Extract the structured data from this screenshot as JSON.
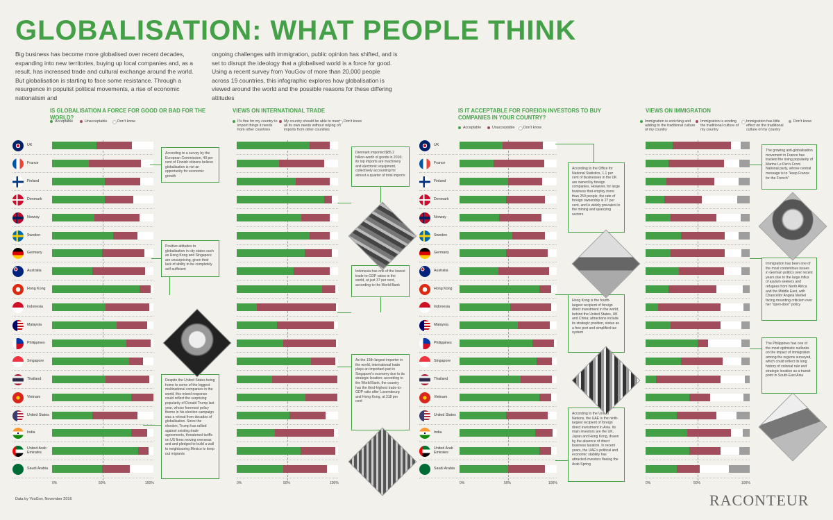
{
  "title": "GLOBALISATION: WHAT PEOPLE THINK",
  "intro_left": "Big business has become more globalised over recent decades, expanding into new territories, buying up local companies and, as a result, has increased trade and cultural exchange around the world. But globalisation is starting to face some resistance. Through a resurgence in populist political movements, a rise of economic nationalism and",
  "intro_right": "ongoing challenges with immigration, public opinion has shifted, and is set to disrupt the ideology that a globalised world is a force for good. Using a recent survey from YouGov of more than 20,000 people across 19 countries, this infographic explores how globalisation is viewed around the world and the possible reasons for these differing attitudes",
  "countries": [
    "UK",
    "France",
    "Finland",
    "Denmark",
    "Norway",
    "Sweden",
    "Germany",
    "Australia",
    "Hong Kong",
    "Indonesia",
    "Malaysia",
    "Philippines",
    "Singapore",
    "Thailand",
    "Vietnam",
    "United States",
    "India",
    "United Arab Emirates",
    "Saudi Arabia"
  ],
  "colors": {
    "green": "#43a047",
    "red": "#a14d5c",
    "white": "#ffffff",
    "grey": "#9e9e9e"
  },
  "axis_labels": {
    "zero": "0%",
    "half": "50%",
    "full": "100%"
  },
  "chart_data": [
    {
      "type": "bar",
      "title": "IS GLOBALISATION A FORCE FOR GOOD OR BAD FOR THE WORLD?",
      "stacked": true,
      "legend": [
        "Acceptable",
        "Unacceptable",
        "Don't know"
      ],
      "categories": [
        "UK",
        "France",
        "Finland",
        "Denmark",
        "Norway",
        "Sweden",
        "Germany",
        "Australia",
        "Hong Kong",
        "Indonesia",
        "Malaysia",
        "Philippines",
        "Singapore",
        "Thailand",
        "Vietnam",
        "United States",
        "India",
        "United Arab Emirates",
        "Saudi Arabia"
      ],
      "series": [
        {
          "name": "Acceptable",
          "values": [
            44,
            36,
            52,
            52,
            42,
            60,
            49,
            40,
            86,
            53,
            64,
            73,
            76,
            53,
            78,
            40,
            78,
            85,
            49
          ]
        },
        {
          "name": "Unacceptable",
          "values": [
            35,
            52,
            35,
            28,
            44,
            24,
            42,
            52,
            11,
            43,
            30,
            24,
            14,
            43,
            22,
            44,
            16,
            10,
            28
          ]
        },
        {
          "name": "Don't know",
          "values": [
            21,
            12,
            13,
            20,
            14,
            16,
            9,
            8,
            3,
            4,
            6,
            3,
            10,
            4,
            0,
            16,
            6,
            5,
            23
          ]
        }
      ],
      "ylim": [
        0,
        100
      ]
    },
    {
      "type": "bar",
      "title": "VIEWS ON INTERNATIONAL TRADE",
      "stacked": true,
      "legend": [
        "It's fine for my country to import things it needs from other countries",
        "My country should be able to meet all its own needs without relying on imports from other countries",
        "Don't know"
      ],
      "categories": [
        "UK",
        "France",
        "Finland",
        "Denmark",
        "Norway",
        "Sweden",
        "Germany",
        "Australia",
        "Hong Kong",
        "Indonesia",
        "Malaysia",
        "Philippines",
        "Singapore",
        "Thailand",
        "Vietnam",
        "United States",
        "India",
        "United Arab Emirates",
        "Saudi Arabia"
      ],
      "series": [
        {
          "name": "It's fine for my country to import things it needs from other countries",
          "values": [
            72,
            42,
            58,
            86,
            64,
            72,
            67,
            56,
            84,
            20,
            40,
            46,
            73,
            35,
            68,
            52,
            38,
            63,
            46
          ]
        },
        {
          "name": "My country should be able to meet all its own needs without relying on imports from other countries",
          "values": [
            20,
            44,
            34,
            8,
            28,
            20,
            27,
            36,
            13,
            78,
            56,
            52,
            24,
            64,
            31,
            36,
            58,
            34,
            43
          ]
        },
        {
          "name": "Don't know",
          "values": [
            8,
            14,
            8,
            6,
            8,
            8,
            6,
            8,
            3,
            2,
            4,
            2,
            3,
            1,
            1,
            12,
            4,
            3,
            11
          ]
        }
      ],
      "ylim": [
        0,
        100
      ]
    },
    {
      "type": "bar",
      "title": "IS IT ACCEPTABLE FOR FOREIGN INVESTORS TO BUY COMPANIES IN YOUR COUNTRY?",
      "stacked": true,
      "legend": [
        "Acceptable",
        "Unacceptable",
        "Don't know"
      ],
      "categories": [
        "UK",
        "France",
        "Finland",
        "Denmark",
        "Norway",
        "Sweden",
        "Germany",
        "Australia",
        "Hong Kong",
        "Indonesia",
        "Malaysia",
        "Philippines",
        "Singapore",
        "Thailand",
        "Vietnam",
        "United States",
        "India",
        "United Arab Emirates",
        "Saudi Arabia"
      ],
      "series": [
        {
          "name": "Acceptable",
          "values": [
            44,
            35,
            50,
            48,
            41,
            54,
            48,
            40,
            82,
            52,
            60,
            75,
            79,
            63,
            82,
            48,
            78,
            82,
            50
          ]
        },
        {
          "name": "Unacceptable",
          "values": [
            42,
            52,
            35,
            40,
            43,
            34,
            43,
            52,
            12,
            42,
            33,
            22,
            16,
            32,
            12,
            43,
            18,
            12,
            38
          ]
        },
        {
          "name": "Don't know",
          "values": [
            14,
            13,
            15,
            12,
            16,
            12,
            9,
            8,
            6,
            6,
            7,
            3,
            5,
            5,
            6,
            9,
            4,
            6,
            12
          ]
        }
      ],
      "ylim": [
        0,
        100
      ]
    },
    {
      "type": "bar",
      "title": "VIEWS ON IMMIGRATION",
      "stacked": true,
      "legend": [
        "Immigration is enriching and adding to the traditional culture of my country",
        "Immigration is eroding the traditional culture of my country",
        "Immigration has little effect on the traditional culture of my country",
        "Don't know"
      ],
      "categories": [
        "UK",
        "France",
        "Finland",
        "Denmark",
        "Norway",
        "Sweden",
        "Germany",
        "Australia",
        "Hong Kong",
        "Indonesia",
        "Malaysia",
        "Philippines",
        "Singapore",
        "Thailand",
        "Vietnam",
        "United States",
        "India",
        "United Arab Emirates",
        "Saudi Arabia"
      ],
      "series": [
        {
          "name": "Immigration is enriching and adding to the traditional culture of my country",
          "values": [
            26,
            22,
            20,
            18,
            24,
            34,
            24,
            32,
            22,
            12,
            24,
            50,
            34,
            10,
            42,
            30,
            40,
            42,
            30
          ]
        },
        {
          "name": "Immigration is eroding the traditional culture of my country",
          "values": [
            56,
            53,
            46,
            36,
            44,
            42,
            52,
            43,
            46,
            60,
            48,
            10,
            40,
            62,
            20,
            38,
            42,
            30,
            22
          ]
        },
        {
          "name": "Immigration has little effect on the traditional culture of my country",
          "values": [
            9,
            15,
            23,
            34,
            23,
            13,
            16,
            17,
            25,
            22,
            20,
            32,
            18,
            23,
            32,
            19,
            11,
            18,
            28
          ]
        },
        {
          "name": "Don't know",
          "values": [
            9,
            10,
            11,
            12,
            9,
            11,
            8,
            8,
            7,
            6,
            8,
            8,
            8,
            5,
            6,
            13,
            7,
            10,
            20
          ]
        }
      ],
      "ylim": [
        0,
        100
      ]
    }
  ],
  "notes": {
    "n1": "According to a survey by the European Commission, 40 per cent of Finnish citizens believe globalisation is not an opportunity for economic growth",
    "n2": "Positive attitudes to globalisation in city states such as Hong Kong and Singapore are unsurprising, given their lack of ability to be completely self-sufficient",
    "n3": "Despite the United States being home to some of the biggest multinational companies in the world, this mixed response could reflect the surprising popularity of Donald Trump last year, whose foremost policy theme in his election campaign was a retreat from decades of globalisation. Since the election, Trump has rallied against existing trade agreements, threatened tariffs on US firms moving overseas and and pledged to build a wall to neighbouring Mexico to keep out migrants",
    "n4": "Denmark imported $85.2 billion-worth of goods in 2016; its top imports are machinery and electronic equipment, collectively accounting for almost a quarter of total imports",
    "n5": "Indonesia has one of the lowest trade-to-GDP ratios in the world, at just 37 per cent, according to the World Bank",
    "n6": "As the 15th-largest importer in the world, international trade plays an important part in Singapore's economy due to its strategic location; according to the World Bank, the country has the third-highest trade-to-GDP ratio after Luxembourg and Hong Kong, at 318 per cent",
    "n7": "According to the Office for National Statistics, 1.1 per cent of businesses in the UK are owned by foreign companies. However, for large business that employ more than 250 people, the rate of foreign ownership is 27 per cent, and is widely prevalent in the mining and quarrying sectors",
    "n8": "Hong Kong is the fourth-largest recipient of foreign direct investment in the world, behind the United States, UK and China; attractions include its strategic position, status as a free port and simplified tax system",
    "n9": "According to the United Nations, the UAE is the ninth-largest recipient of foreign direct investment in Asia. Its main investors are the UK, Japan and Hong Kong, drawn by the absence of direct business taxation. In recent years, the UAE's political and economic stability has attracted investors fleeing the Arab Spring",
    "n10": "The growing anti-globalisation movement in France has tracked the rising popularity of Marine Le Pen's Front National party, whose central message is to \"keep France for the French\"",
    "n11": "Immigration has been one of the most contentious issues in German politics over recent years due to the large influx of asylum seekers and refugees from North Africa and the Middle East, with Chancellor Angela Merkel facing mounting criticism over her \"open-door\" policy",
    "n12": "The Philippines has one of the most optimistic outlooks on the impact of immigration among the regions surveyed, which could reflect its long history of colonial rule and strategic location as a transit point in South-East Asia"
  },
  "footer": "Data by YouGov, November 2016",
  "logo": "RACONTEUR"
}
